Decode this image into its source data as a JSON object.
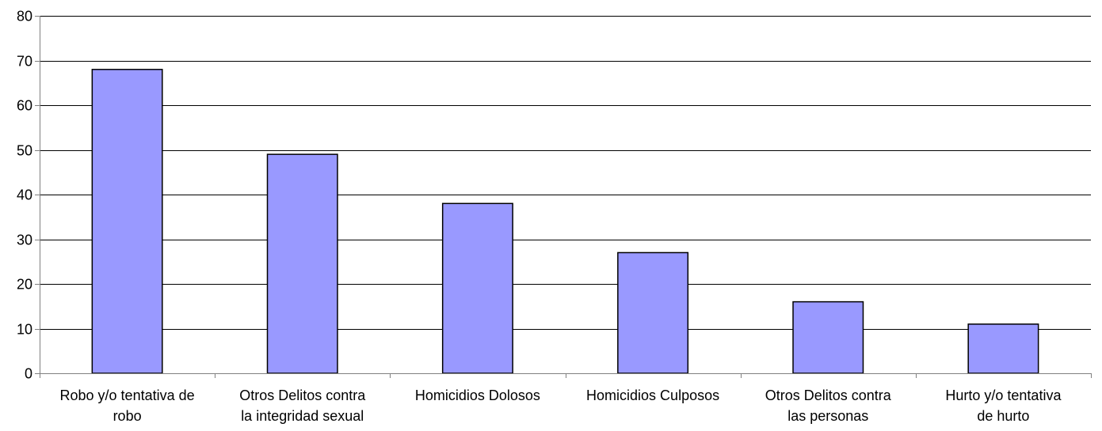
{
  "chart_data": {
    "type": "bar",
    "title": "",
    "xlabel": "",
    "ylabel": "",
    "categories": [
      [
        "Robo y/o tentativa de",
        "robo"
      ],
      [
        "Otros Delitos contra",
        "la integridad sexual"
      ],
      [
        "Homicidios Dolosos"
      ],
      [
        "Homicidios Culposos"
      ],
      [
        "Otros Delitos contra",
        "las personas"
      ],
      [
        "Hurto y/o tentativa",
        "de hurto"
      ]
    ],
    "values": [
      68,
      49,
      38,
      27,
      16,
      11
    ],
    "ylim": [
      0,
      80
    ],
    "yticks": [
      0,
      10,
      20,
      30,
      40,
      50,
      60,
      70,
      80
    ],
    "grid": true,
    "legend": "none",
    "colors": {
      "bar_fill": "#9999ff",
      "bar_stroke": "#000000",
      "grid": "#000000",
      "axis": "#808080",
      "background": "#ffffff"
    }
  }
}
